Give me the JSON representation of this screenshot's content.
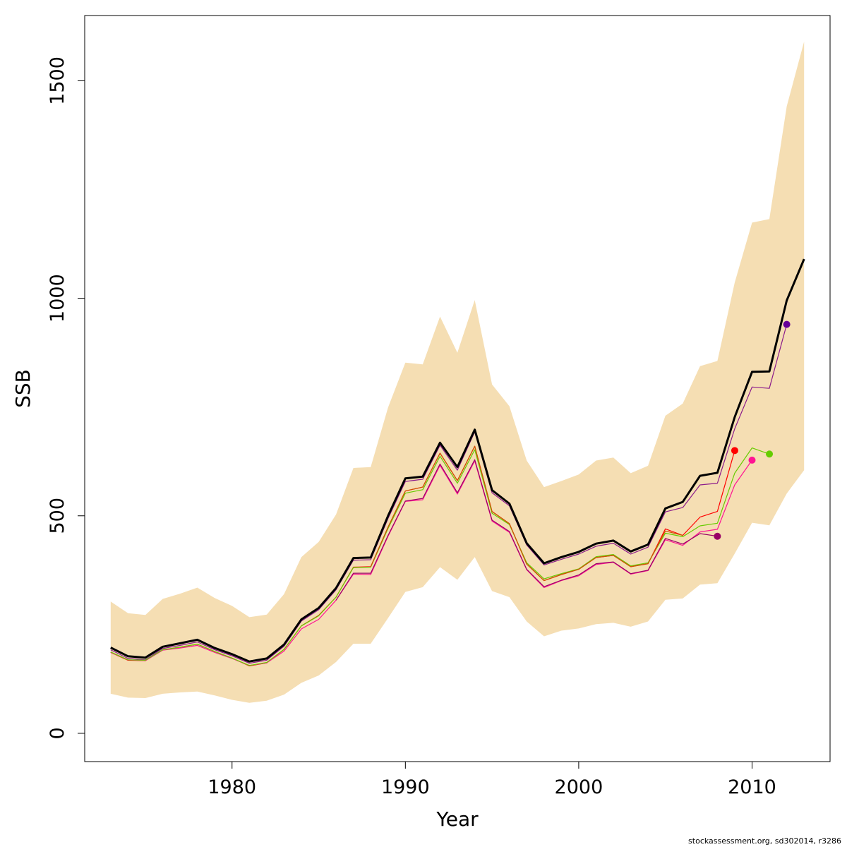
{
  "chart_data": {
    "type": "line",
    "xlabel": "Year",
    "ylabel": "SSB",
    "xlim": [
      1971.5,
      2014.5
    ],
    "ylim": [
      -65,
      1650
    ],
    "x_ticks": [
      1980,
      1990,
      2000,
      2010
    ],
    "y_ticks": [
      0,
      500,
      1000,
      1500
    ],
    "grid": false,
    "legend": "none",
    "band": {
      "color": "#f5deb3",
      "years": [
        1973,
        1974,
        1975,
        1976,
        1977,
        1978,
        1979,
        1980,
        1981,
        1982,
        1983,
        1984,
        1985,
        1986,
        1987,
        1988,
        1989,
        1990,
        1991,
        1992,
        1993,
        1994,
        1995,
        1996,
        1997,
        1998,
        1999,
        2000,
        2001,
        2002,
        2003,
        2004,
        2005,
        2006,
        2007,
        2008,
        2009,
        2010,
        2011,
        2012,
        2013
      ],
      "upper": [
        303,
        276,
        272,
        309,
        321,
        335,
        311,
        293,
        267,
        273,
        320,
        405,
        440,
        503,
        610,
        612,
        749,
        852,
        848,
        958,
        875,
        996,
        802,
        752,
        627,
        566,
        580,
        595,
        627,
        634,
        598,
        615,
        730,
        758,
        844,
        856,
        1036,
        1174,
        1182,
        1441,
        1590
      ],
      "lower": [
        91,
        82,
        81,
        91,
        94,
        96,
        87,
        77,
        70,
        75,
        89,
        116,
        133,
        164,
        206,
        206,
        265,
        325,
        336,
        382,
        353,
        405,
        327,
        313,
        257,
        223,
        236,
        241,
        251,
        254,
        245,
        257,
        307,
        310,
        342,
        345,
        413,
        484,
        478,
        551,
        605
      ]
    },
    "series": [
      {
        "color": "#000000",
        "years": [
          1973,
          1974,
          1975,
          1976,
          1977,
          1978,
          1979,
          1980,
          1981,
          1982,
          1983,
          1984,
          1985,
          1986,
          1987,
          1988,
          1989,
          1990,
          1991,
          1992,
          1993,
          1994,
          1995,
          1996,
          1997,
          1998,
          1999,
          2000,
          2001,
          2002,
          2003,
          2004,
          2005,
          2006,
          2007,
          2008,
          2009,
          2010,
          2011,
          2012,
          2013
        ],
        "values": [
          197,
          177,
          174,
          199,
          207,
          215,
          196,
          182,
          165,
          172,
          204,
          262,
          288,
          334,
          403,
          404,
          500,
          586,
          590,
          668,
          612,
          698,
          559,
          528,
          437,
          391,
          405,
          417,
          436,
          443,
          418,
          434,
          517,
          532,
          592,
          599,
          727,
          831,
          832,
          995,
          1090
        ]
      },
      {
        "color": "#8b1a8b",
        "years": [
          1973,
          1974,
          1975,
          1976,
          1977,
          1978,
          1979,
          1980,
          1981,
          1982,
          1983,
          1984,
          1985,
          1986,
          1987,
          1988,
          1989,
          1990,
          1991,
          1992,
          1993,
          1994,
          1995,
          1996,
          1997,
          1998,
          1999,
          2000,
          2001,
          2002,
          2003,
          2004,
          2005,
          2006,
          2007,
          2008,
          2009,
          2010,
          2011,
          2012
        ],
        "values": [
          192,
          172,
          169,
          195,
          202,
          210,
          192,
          178,
          161,
          168,
          200,
          258,
          284,
          330,
          398,
          399,
          494,
          579,
          584,
          662,
          605,
          693,
          553,
          523,
          433,
          387,
          400,
          412,
          430,
          437,
          412,
          428,
          509,
          519,
          571,
          575,
          700,
          796,
          793,
          940
        ]
      },
      {
        "color": "#ff0000",
        "years": [
          1973,
          1974,
          1975,
          1976,
          1977,
          1978,
          1979,
          1980,
          1981,
          1982,
          1983,
          1984,
          1985,
          1986,
          1987,
          1988,
          1989,
          1990,
          1991,
          1992,
          1993,
          1994,
          1995,
          1996,
          1997,
          1998,
          1999,
          2000,
          2001,
          2002,
          2003,
          2004,
          2005,
          2006,
          2007,
          2008,
          2009
        ],
        "values": [
          186,
          168,
          167,
          192,
          198,
          205,
          188,
          173,
          155,
          162,
          193,
          247,
          271,
          313,
          382,
          383,
          474,
          557,
          566,
          644,
          581,
          660,
          510,
          482,
          389,
          351,
          365,
          377,
          404,
          409,
          383,
          390,
          470,
          455,
          497,
          510,
          650
        ]
      },
      {
        "color": "#ff1493",
        "years": [
          1973,
          1974,
          1975,
          1976,
          1977,
          1978,
          1979,
          1980,
          1981,
          1982,
          1983,
          1984,
          1985,
          1986,
          1987,
          1988,
          1989,
          1990,
          1991,
          1992,
          1993,
          1994,
          1995,
          1996,
          1997,
          1998,
          1999,
          2000,
          2001,
          2002,
          2003,
          2004,
          2005,
          2006,
          2007,
          2008,
          2009,
          2010
        ],
        "values": [
          186,
          169,
          167,
          191,
          196,
          202,
          186,
          172,
          156,
          162,
          189,
          240,
          262,
          306,
          366,
          365,
          453,
          533,
          537,
          616,
          550,
          626,
          488,
          462,
          376,
          335,
          351,
          362,
          388,
          393,
          366,
          374,
          445,
          432,
          463,
          469,
          571,
          628
        ]
      },
      {
        "color": "#66cc00",
        "years": [
          1973,
          1974,
          1975,
          1976,
          1977,
          1978,
          1979,
          1980,
          1981,
          1982,
          1983,
          1984,
          1985,
          1986,
          1987,
          1988,
          1989,
          1990,
          1991,
          1992,
          1993,
          1994,
          1995,
          1996,
          1997,
          1998,
          1999,
          2000,
          2001,
          2002,
          2003,
          2004,
          2005,
          2006,
          2007,
          2008,
          2009,
          2010,
          2011
        ],
        "values": [
          187,
          169,
          168,
          192,
          198,
          205,
          188,
          173,
          156,
          163,
          193,
          247,
          270,
          313,
          381,
          382,
          471,
          552,
          560,
          637,
          575,
          652,
          506,
          480,
          392,
          355,
          367,
          378,
          406,
          411,
          385,
          392,
          460,
          452,
          477,
          483,
          598,
          656,
          642
        ]
      },
      {
        "color": "#cc5500",
        "years": [
          1988,
          1989,
          1990,
          1991,
          1992,
          1993,
          1994,
          1995,
          1996,
          1997,
          1998,
          1999,
          2000,
          2001,
          2002,
          2003,
          2004,
          2005,
          2006
        ],
        "values": [
          383,
          474,
          557,
          566,
          644,
          581,
          660,
          510,
          482,
          389,
          351,
          365,
          377,
          404,
          409,
          383,
          390,
          465,
          455
        ]
      },
      {
        "color": "#990066",
        "years": [
          1986,
          1987,
          1988,
          1989,
          1990,
          1991,
          1992,
          1993,
          1994,
          1995,
          1996,
          1997,
          1998,
          1999,
          2000,
          2001,
          2002,
          2003,
          2004,
          2005,
          2006,
          2007,
          2008
        ],
        "values": [
          306,
          368,
          368,
          455,
          534,
          540,
          619,
          553,
          629,
          490,
          464,
          377,
          337,
          352,
          364,
          390,
          394,
          367,
          375,
          448,
          435,
          459,
          453
        ]
      }
    ],
    "endpoints": [
      {
        "year": 2008,
        "value": 453,
        "color": "#990066"
      },
      {
        "year": 2009,
        "value": 650,
        "color": "#ff0000"
      },
      {
        "year": 2010,
        "value": 628,
        "color": "#ff1493"
      },
      {
        "year": 2011,
        "value": 642,
        "color": "#66cc00"
      },
      {
        "year": 2012,
        "value": 940,
        "color": "#660099"
      }
    ]
  },
  "credit": "stockassessment.org, sd302014, r3286"
}
